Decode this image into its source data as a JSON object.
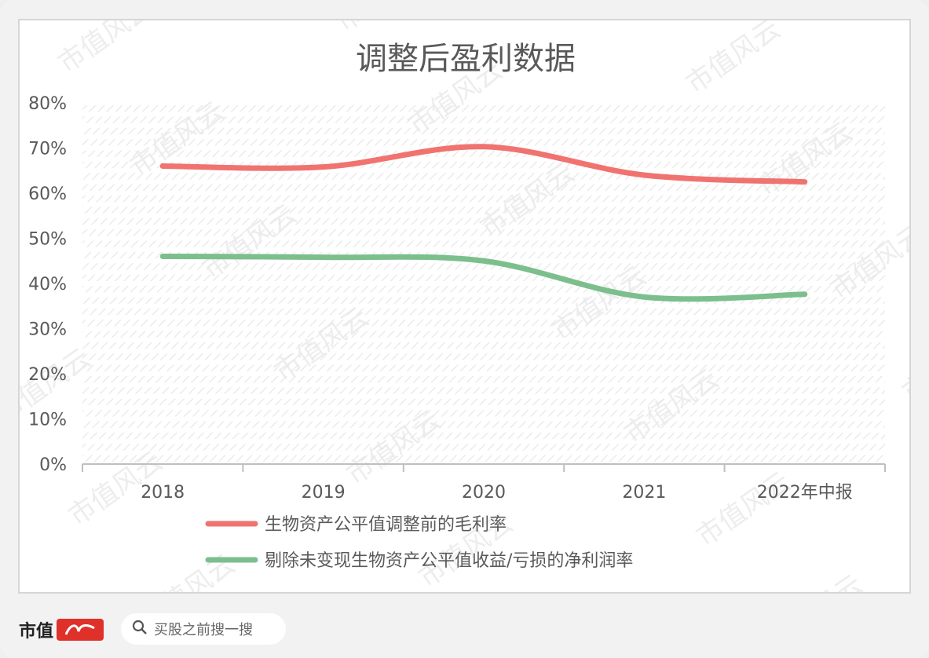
{
  "chart_data": {
    "type": "line",
    "title": "调整后盈利数据",
    "categories": [
      "2018",
      "2019",
      "2020",
      "2021",
      "2022年中报"
    ],
    "y_ticks": [
      "0%",
      "10%",
      "20%",
      "30%",
      "40%",
      "50%",
      "60%",
      "70%",
      "80%"
    ],
    "ylim": [
      0,
      80
    ],
    "grid": "hatched horizontal bands",
    "legend_position": "bottom",
    "series": [
      {
        "name": "生物资产公平值调整前的毛利率",
        "values": [
          66.0,
          65.8,
          70.3,
          64.0,
          62.5
        ],
        "color": "#f07370"
      },
      {
        "name": "剔除未变现生物资产公平值收益/亏损的净利润率",
        "values": [
          46.0,
          45.8,
          45.0,
          37.0,
          37.6
        ],
        "color": "#7cbf8d"
      }
    ]
  },
  "watermark": "市值风云",
  "footer": {
    "logo_text": "市值",
    "logo_mark_text": "风云",
    "search_placeholder": "买股之前搜一搜"
  }
}
